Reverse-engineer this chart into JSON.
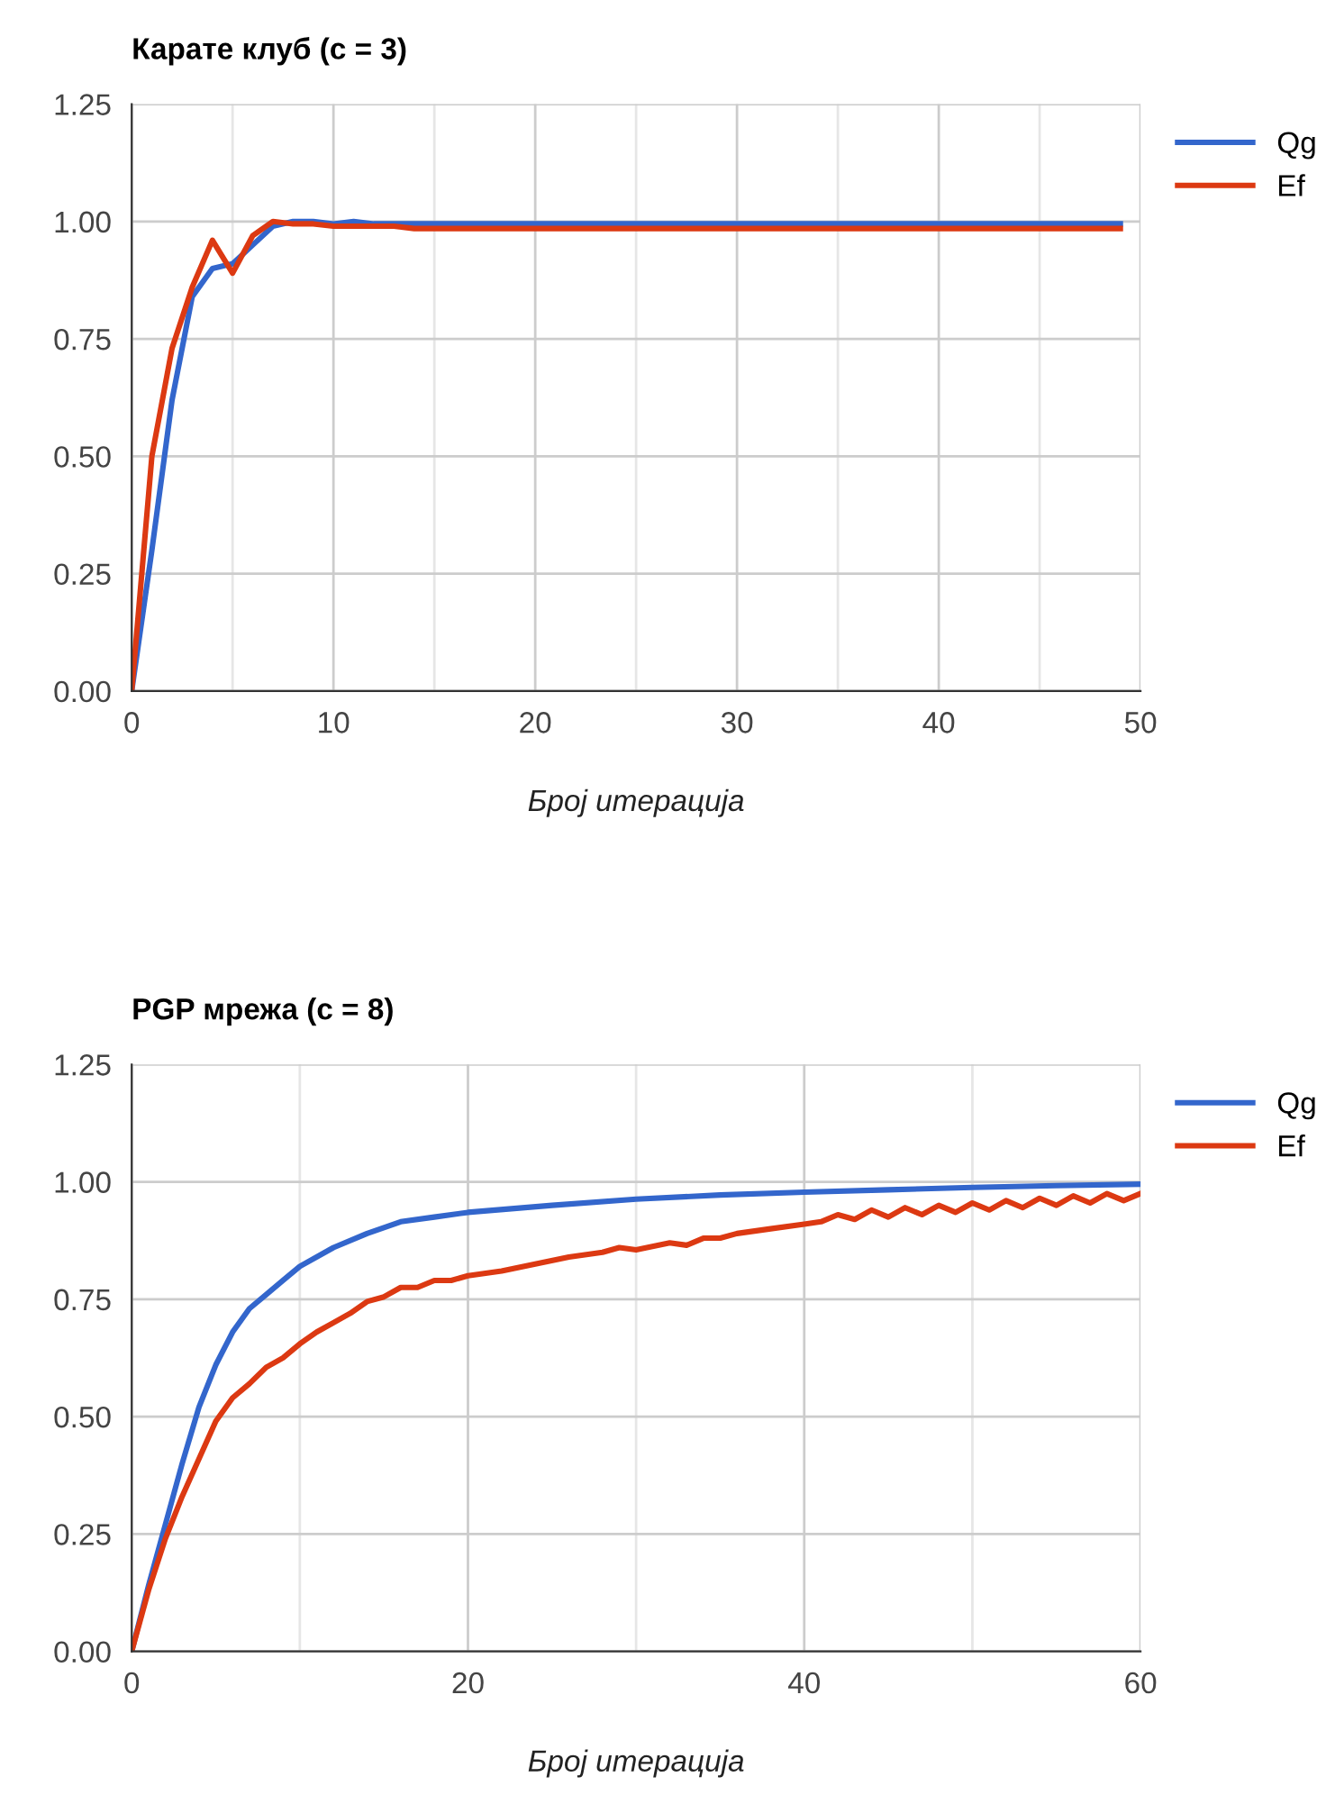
{
  "chart_data": [
    {
      "type": "line",
      "title": "Карате клуб (c = 3)",
      "xlabel": "Број итерација",
      "xlim": [
        0,
        50
      ],
      "ylim": [
        0,
        1.25
      ],
      "xticks": [
        0,
        {
          "value": 5,
          "label": null
        },
        10,
        {
          "value": 15,
          "label": null
        },
        20,
        {
          "value": 25,
          "label": null
        },
        30,
        {
          "value": 35,
          "label": null
        },
        40,
        {
          "value": 45,
          "label": null
        },
        50
      ],
      "yticks": [
        {
          "value": 0,
          "label": "0.00"
        },
        {
          "value": 0.25,
          "label": "0.25"
        },
        {
          "value": 0.5,
          "label": "0.50"
        },
        {
          "value": 0.75,
          "label": "0.75"
        },
        {
          "value": 1,
          "label": "1.00"
        },
        {
          "value": 1.25,
          "label": "1.25"
        }
      ],
      "grid": true,
      "legend": "top right",
      "series": [
        {
          "name": "Qg",
          "color": "#3366cc",
          "x": [
            0,
            1,
            2,
            3,
            4,
            5,
            6,
            7,
            8,
            9,
            10,
            11,
            12,
            15,
            20,
            30,
            40,
            49
          ],
          "values": [
            0,
            0.3,
            0.62,
            0.84,
            0.9,
            0.91,
            0.95,
            0.99,
            1.0,
            1.0,
            0.995,
            1.0,
            0.995,
            0.995,
            0.995,
            0.995,
            0.995,
            0.995
          ]
        },
        {
          "name": "Ef",
          "color": "#dc3912",
          "x": [
            0,
            1,
            2,
            3,
            4,
            5,
            6,
            7,
            8,
            9,
            10,
            11,
            12,
            13,
            14,
            15,
            20,
            30,
            40,
            49
          ],
          "values": [
            0,
            0.5,
            0.73,
            0.86,
            0.96,
            0.89,
            0.97,
            1.0,
            0.995,
            0.995,
            0.99,
            0.99,
            0.99,
            0.99,
            0.985,
            0.985,
            0.985,
            0.985,
            0.985,
            0.985
          ]
        }
      ]
    },
    {
      "type": "line",
      "title": "PGP мрежа (c = 8)",
      "xlabel": "Број итерација",
      "xlim": [
        0,
        60
      ],
      "ylim": [
        0,
        1.25
      ],
      "xticks": [
        0,
        {
          "value": 10,
          "label": null
        },
        20,
        {
          "value": 30,
          "label": null
        },
        40,
        {
          "value": 50,
          "label": null
        },
        60
      ],
      "yticks": [
        {
          "value": 0,
          "label": "0.00"
        },
        {
          "value": 0.25,
          "label": "0.25"
        },
        {
          "value": 0.5,
          "label": "0.50"
        },
        {
          "value": 0.75,
          "label": "0.75"
        },
        {
          "value": 1,
          "label": "1.00"
        },
        {
          "value": 1.25,
          "label": "1.25"
        }
      ],
      "grid": true,
      "legend": "top right",
      "series": [
        {
          "name": "Qg",
          "color": "#3366cc",
          "x": [
            0,
            1,
            2,
            3,
            4,
            5,
            6,
            7,
            8,
            9,
            10,
            12,
            14,
            16,
            18,
            20,
            25,
            30,
            35,
            40,
            45,
            50,
            55,
            60
          ],
          "values": [
            0,
            0.14,
            0.27,
            0.4,
            0.52,
            0.61,
            0.68,
            0.73,
            0.76,
            0.79,
            0.82,
            0.86,
            0.89,
            0.915,
            0.925,
            0.935,
            0.95,
            0.963,
            0.972,
            0.978,
            0.983,
            0.988,
            0.992,
            0.995
          ]
        },
        {
          "name": "Ef",
          "color": "#dc3912",
          "x": [
            0,
            1,
            2,
            3,
            4,
            5,
            6,
            7,
            8,
            9,
            10,
            11,
            12,
            13,
            14,
            15,
            16,
            17,
            18,
            19,
            20,
            22,
            24,
            26,
            28,
            29,
            30,
            32,
            33,
            34,
            35,
            36,
            38,
            40,
            41,
            42,
            43,
            44,
            45,
            46,
            47,
            48,
            49,
            50,
            51,
            52,
            53,
            54,
            55,
            56,
            57,
            58,
            59,
            60
          ],
          "values": [
            0,
            0.13,
            0.24,
            0.33,
            0.41,
            0.49,
            0.54,
            0.57,
            0.605,
            0.625,
            0.655,
            0.68,
            0.7,
            0.72,
            0.745,
            0.755,
            0.775,
            0.775,
            0.79,
            0.79,
            0.8,
            0.81,
            0.825,
            0.84,
            0.85,
            0.86,
            0.855,
            0.87,
            0.865,
            0.88,
            0.88,
            0.89,
            0.9,
            0.91,
            0.915,
            0.93,
            0.92,
            0.94,
            0.925,
            0.945,
            0.93,
            0.95,
            0.935,
            0.955,
            0.94,
            0.96,
            0.945,
            0.965,
            0.95,
            0.97,
            0.955,
            0.975,
            0.96,
            0.975
          ]
        }
      ]
    }
  ]
}
